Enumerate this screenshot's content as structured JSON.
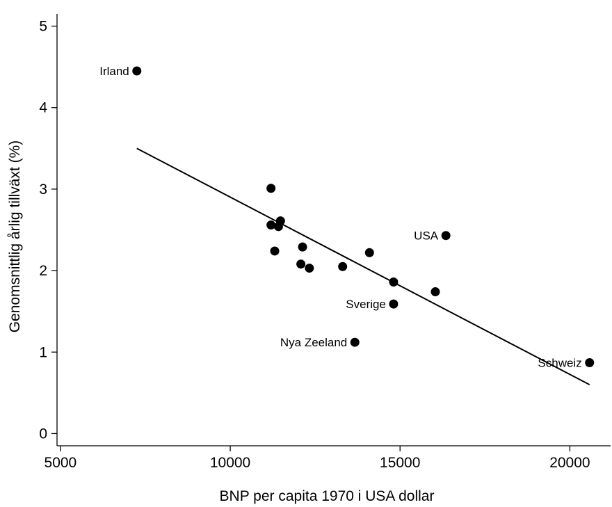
{
  "chart_data": {
    "type": "scatter",
    "xlabel": "BNP per capita 1970 i USA dollar",
    "ylabel": "Genomsnittlig årlig tillväxt (%)",
    "xlim": [
      4900,
      21200
    ],
    "ylim": [
      -0.15,
      5.15
    ],
    "xticks": [
      5000,
      10000,
      15000,
      20000
    ],
    "xtick_labels": [
      "5000",
      "10000",
      "15000",
      "20000"
    ],
    "yticks": [
      0,
      1,
      2,
      3,
      4,
      5
    ],
    "ytick_labels": [
      "0",
      "1",
      "2",
      "3",
      "4",
      "5"
    ],
    "grid": false,
    "points": [
      {
        "x": 7250,
        "y": 4.45,
        "label": "Irland"
      },
      {
        "x": 11200,
        "y": 3.01,
        "label": ""
      },
      {
        "x": 11200,
        "y": 2.56,
        "label": ""
      },
      {
        "x": 11480,
        "y": 2.61,
        "label": ""
      },
      {
        "x": 11420,
        "y": 2.54,
        "label": ""
      },
      {
        "x": 11310,
        "y": 2.24,
        "label": ""
      },
      {
        "x": 12130,
        "y": 2.29,
        "label": ""
      },
      {
        "x": 12080,
        "y": 2.08,
        "label": ""
      },
      {
        "x": 12330,
        "y": 2.03,
        "label": ""
      },
      {
        "x": 13310,
        "y": 2.05,
        "label": ""
      },
      {
        "x": 14100,
        "y": 2.22,
        "label": ""
      },
      {
        "x": 14810,
        "y": 1.86,
        "label": ""
      },
      {
        "x": 16040,
        "y": 1.74,
        "label": ""
      },
      {
        "x": 16350,
        "y": 2.43,
        "label": "USA"
      },
      {
        "x": 14810,
        "y": 1.59,
        "label": "Sverige"
      },
      {
        "x": 13670,
        "y": 1.12,
        "label": "Nya Zeeland"
      },
      {
        "x": 20580,
        "y": 0.87,
        "label": "Schweiz"
      }
    ],
    "fit_line": {
      "x": [
        7250,
        20580
      ],
      "y": [
        3.5,
        0.6
      ]
    }
  }
}
